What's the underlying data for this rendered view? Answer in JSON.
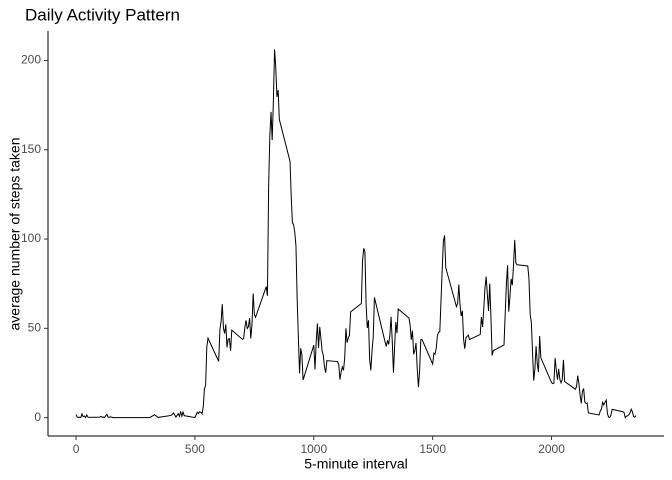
{
  "chart_data": {
    "type": "line",
    "title": "Daily Activity Pattern",
    "x_label": "5-minute interval",
    "y_label": "average number of steps taken",
    "color": "#000000",
    "x": [
      0,
      5,
      10,
      15,
      20,
      25,
      30,
      35,
      40,
      45,
      50,
      55,
      100,
      105,
      110,
      115,
      120,
      125,
      130,
      135,
      140,
      145,
      150,
      155,
      200,
      230,
      245,
      300,
      310,
      330,
      345,
      400,
      410,
      420,
      430,
      435,
      440,
      445,
      450,
      455,
      500,
      505,
      510,
      515,
      520,
      525,
      530,
      535,
      540,
      545,
      550,
      555,
      600,
      605,
      610,
      615,
      620,
      625,
      630,
      635,
      640,
      645,
      650,
      655,
      700,
      705,
      710,
      715,
      720,
      725,
      730,
      735,
      740,
      745,
      750,
      755,
      800,
      805,
      810,
      815,
      820,
      825,
      830,
      835,
      840,
      845,
      850,
      855,
      900,
      905,
      910,
      915,
      920,
      925,
      930,
      935,
      940,
      945,
      950,
      955,
      1000,
      1005,
      1010,
      1015,
      1020,
      1025,
      1030,
      1035,
      1040,
      1045,
      1050,
      1055,
      1100,
      1105,
      1110,
      1115,
      1120,
      1125,
      1130,
      1135,
      1140,
      1145,
      1150,
      1155,
      1200,
      1205,
      1210,
      1215,
      1220,
      1225,
      1230,
      1235,
      1240,
      1245,
      1250,
      1255,
      1300,
      1305,
      1310,
      1315,
      1320,
      1325,
      1330,
      1335,
      1340,
      1345,
      1350,
      1355,
      1400,
      1405,
      1410,
      1415,
      1420,
      1425,
      1430,
      1435,
      1440,
      1445,
      1450,
      1455,
      1500,
      1505,
      1510,
      1515,
      1520,
      1525,
      1530,
      1535,
      1540,
      1545,
      1550,
      1555,
      1600,
      1605,
      1610,
      1615,
      1620,
      1625,
      1630,
      1635,
      1640,
      1645,
      1650,
      1655,
      1700,
      1705,
      1710,
      1715,
      1720,
      1725,
      1730,
      1735,
      1740,
      1745,
      1750,
      1755,
      1800,
      1805,
      1810,
      1815,
      1820,
      1825,
      1830,
      1835,
      1840,
      1845,
      1850,
      1855,
      1900,
      1905,
      1910,
      1915,
      1920,
      1925,
      1930,
      1935,
      1940,
      1945,
      1950,
      1955,
      2000,
      2005,
      2010,
      2015,
      2020,
      2025,
      2030,
      2035,
      2040,
      2045,
      2050,
      2055,
      2100,
      2105,
      2110,
      2115,
      2120,
      2125,
      2130,
      2135,
      2140,
      2145,
      2150,
      2155,
      2200,
      2205,
      2210,
      2215,
      2220,
      2225,
      2230,
      2235,
      2240,
      2245,
      2250,
      2255,
      2300,
      2305,
      2310,
      2315,
      2320,
      2325,
      2330,
      2335,
      2340,
      2345,
      2350,
      2355
    ],
    "values": [
      1.7,
      0.3,
      0.1,
      0.2,
      0.1,
      2.1,
      0.5,
      0.9,
      0,
      1.5,
      0.3,
      0.1,
      0.3,
      0.7,
      0.2,
      0.3,
      0,
      1.1,
      1.8,
      0.2,
      0.2,
      0.4,
      0.3,
      0,
      0,
      0,
      0,
      0,
      0,
      1.6,
      0.1,
      1.2,
      2.6,
      0.3,
      2.2,
      0.7,
      3.5,
      0.8,
      3.1,
      1.1,
      0,
      1.6,
      3.0,
      2.2,
      3.3,
      3.0,
      2.1,
      6.1,
      16,
      18.3,
      39.5,
      44.5,
      31.5,
      49.3,
      53.8,
      63.5,
      50,
      47.1,
      52.2,
      39.3,
      44,
      44.2,
      37.4,
      49,
      43.8,
      44.4,
      50.5,
      54.5,
      49.9,
      50.9,
      55.7,
      44.3,
      52.3,
      69.5,
      57.8,
      56.2,
      73.4,
      68.2,
      129.4,
      157.5,
      171.2,
      155.4,
      177.3,
      206.2,
      195.9,
      179.6,
      183.4,
      167,
      143.5,
      124,
      109.1,
      108.1,
      103.7,
      96,
      66.2,
      45.2,
      24.8,
      38.8,
      35,
      21.1,
      40.6,
      27,
      42.4,
      52.7,
      38.9,
      50.8,
      44.3,
      37.4,
      34.7,
      28.3,
      25.1,
      31.9,
      31.4,
      29.7,
      21.3,
      25.5,
      28.4,
      26.5,
      33.4,
      50,
      42,
      44.6,
      46,
      59.2,
      63.9,
      87.7,
      94.8,
      92.8,
      63.4,
      50.2,
      54.5,
      32.4,
      26.5,
      37.7,
      45.1,
      67.3,
      42.3,
      39.9,
      43.3,
      41,
      46.2,
      56.4,
      42.8,
      25.1,
      40,
      53.5,
      47.3,
      60.8,
      55.8,
      52,
      43.6,
      48.7,
      35.5,
      37.5,
      41.8,
      27.5,
      17.1,
      26.1,
      43.6,
      43.8,
      30,
      36.1,
      35.5,
      38.8,
      46,
      47.8,
      48.1,
      65.3,
      82.9,
      98.7,
      102.1,
      84,
      62.1,
      64.1,
      74.5,
      63.2,
      56.9,
      59.8,
      43.9,
      38.6,
      44.7,
      45.5,
      46.2,
      43.7,
      46.6,
      56.3,
      50.7,
      61.2,
      72.7,
      78.9,
      68.9,
      59.7,
      75.1,
      56.5,
      34.8,
      37.5,
      40.7,
      58,
      74.7,
      85.3,
      59.3,
      67.8,
      77.7,
      74.2,
      85.3,
      99.5,
      86.6,
      85.6,
      84.9,
      77.8,
      58,
      53.4,
      36.3,
      20.7,
      27.4,
      40,
      30.2,
      25.5,
      45.7,
      33.5,
      19.6,
      19,
      19.3,
      33.3,
      26.8,
      21.2,
      27.3,
      21.3,
      19.5,
      21.3,
      32.3,
      20.2,
      15.9,
      17.2,
      23.5,
      19.2,
      12.5,
      8,
      14.7,
      16.3,
      8.7,
      7.8,
      8.1,
      2.6,
      1.5,
      3.7,
      4.8,
      8.5,
      7.1,
      8.7,
      9.8,
      2.2,
      0.3,
      0.1,
      1.6,
      4.6,
      3.3,
      2.8,
      0,
      0.8,
      1,
      1.6,
      2.6,
      4.7,
      3.3,
      0.6,
      0.2,
      1.1
    ],
    "xlim": [
      -118,
      2473
    ],
    "xticks": [
      0,
      500,
      1000,
      1500,
      2000
    ],
    "ylim": [
      -10.3,
      216.5
    ],
    "yticks": [
      0,
      50,
      100,
      150,
      200
    ],
    "grid": false
  }
}
